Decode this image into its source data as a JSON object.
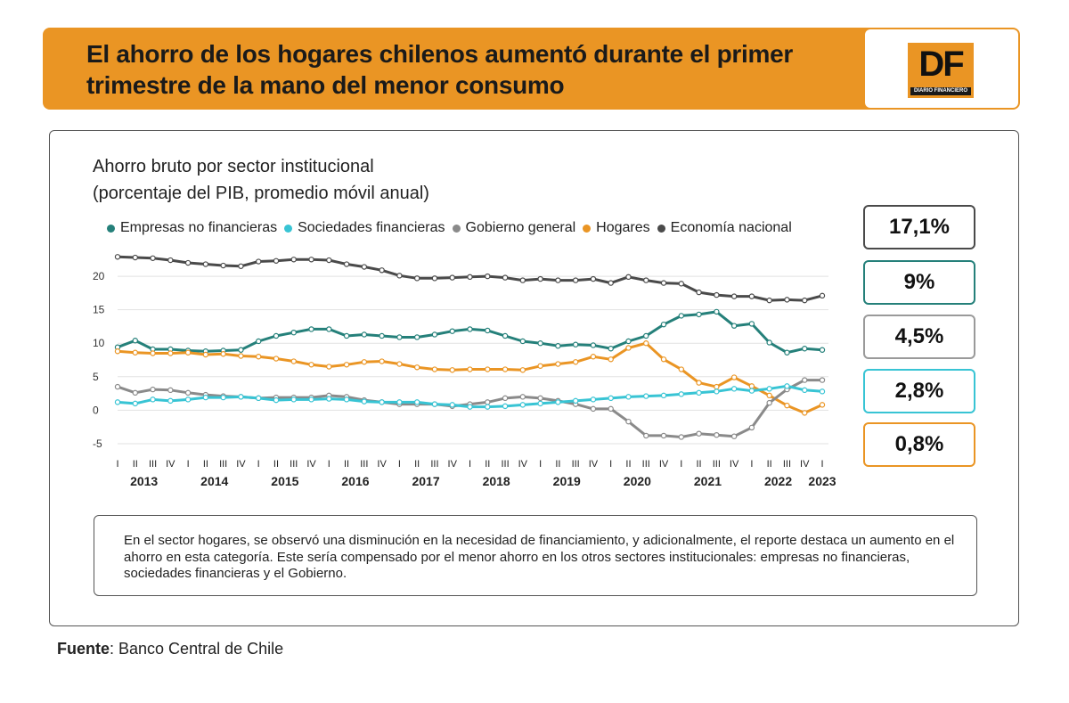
{
  "header": {
    "title": "El ahorro de los hogares chilenos aumentó durante el primer trimestre de la mano del menor consumo",
    "logo_text": "DF",
    "logo_subtext": "DIARIO FINANCIERO"
  },
  "chart": {
    "title_line1": "Ahorro bruto por sector institucional",
    "title_line2": "(porcentaje del PIB, promedio móvil anual)"
  },
  "legend": [
    {
      "label": "Empresas no financieras",
      "color": "#25807a"
    },
    {
      "label": "Sociedades financieras",
      "color": "#38c4d4"
    },
    {
      "label": "Gobierno general",
      "color": "#8a8a8a"
    },
    {
      "label": "Hogares",
      "color": "#ea9524"
    },
    {
      "label": "Economía nacional",
      "color": "#4a4a4a"
    }
  ],
  "value_boxes": [
    {
      "value": "17,1%",
      "color": "#4a4a4a"
    },
    {
      "value": "9%",
      "color": "#25807a"
    },
    {
      "value": "4,5%",
      "color": "#9a9a9a"
    },
    {
      "value": "2,8%",
      "color": "#38c4d4"
    },
    {
      "value": "0,8%",
      "color": "#ea9524"
    }
  ],
  "chart_data": {
    "type": "line",
    "title": "Ahorro bruto por sector institucional",
    "subtitle": "(porcentaje del PIB, promedio móvil anual)",
    "xlabel": "",
    "ylabel": "",
    "ylim": [
      -7,
      24
    ],
    "yticks": [
      20,
      15,
      10,
      5,
      0,
      -5
    ],
    "grid": "horizontal",
    "quarters": [
      "I",
      "II",
      "III",
      "IV",
      "I",
      "II",
      "III",
      "IV",
      "I",
      "II",
      "III",
      "IV",
      "I",
      "II",
      "III",
      "IV",
      "I",
      "II",
      "III",
      "IV",
      "I",
      "II",
      "III",
      "IV",
      "I",
      "II",
      "III",
      "IV",
      "I",
      "II",
      "III",
      "IV",
      "I",
      "II",
      "III",
      "IV",
      "I",
      "II",
      "III",
      "IV",
      "I"
    ],
    "years": [
      "2013",
      "2014",
      "2015",
      "2016",
      "2017",
      "2018",
      "2019",
      "2020",
      "2021",
      "2022",
      "2023"
    ],
    "series": [
      {
        "name": "Economía nacional",
        "color": "#4a4a4a",
        "values": [
          22.9,
          22.8,
          22.7,
          22.4,
          22.0,
          21.8,
          21.6,
          21.5,
          22.2,
          22.3,
          22.5,
          22.5,
          22.4,
          21.8,
          21.4,
          20.9,
          20.1,
          19.7,
          19.7,
          19.8,
          19.9,
          20.0,
          19.8,
          19.4,
          19.6,
          19.4,
          19.4,
          19.6,
          19.0,
          19.9,
          19.4,
          19.0,
          18.9,
          17.6,
          17.2,
          17.0,
          17.0,
          16.4,
          16.5,
          16.4,
          17.1
        ]
      },
      {
        "name": "Empresas no financieras",
        "color": "#25807a",
        "values": [
          9.4,
          10.4,
          9.1,
          9.1,
          8.9,
          8.8,
          8.9,
          9.0,
          10.3,
          11.1,
          11.6,
          12.1,
          12.1,
          11.1,
          11.3,
          11.1,
          10.9,
          10.9,
          11.3,
          11.8,
          12.1,
          11.9,
          11.1,
          10.3,
          10.0,
          9.6,
          9.8,
          9.7,
          9.2,
          10.3,
          11.1,
          12.8,
          14.1,
          14.3,
          14.7,
          12.6,
          12.9,
          10.1,
          8.6,
          9.2,
          9.0
        ]
      },
      {
        "name": "Hogares",
        "color": "#ea9524",
        "values": [
          8.8,
          8.6,
          8.5,
          8.5,
          8.6,
          8.3,
          8.4,
          8.1,
          8.0,
          7.7,
          7.3,
          6.8,
          6.5,
          6.8,
          7.2,
          7.3,
          6.9,
          6.4,
          6.1,
          6.0,
          6.1,
          6.1,
          6.1,
          6.0,
          6.6,
          6.9,
          7.2,
          8.0,
          7.6,
          9.3,
          10.0,
          7.6,
          6.1,
          4.1,
          3.5,
          4.9,
          3.6,
          2.2,
          0.7,
          -0.4,
          0.8
        ]
      },
      {
        "name": "Gobierno general",
        "color": "#8a8a8a",
        "values": [
          3.5,
          2.6,
          3.1,
          3.0,
          2.6,
          2.3,
          2.1,
          2.0,
          1.8,
          1.9,
          1.9,
          1.9,
          2.2,
          2.0,
          1.5,
          1.2,
          0.9,
          0.9,
          0.9,
          0.6,
          0.9,
          1.2,
          1.8,
          2.0,
          1.8,
          1.4,
          0.9,
          0.2,
          0.2,
          -1.7,
          -3.8,
          -3.8,
          -4.0,
          -3.5,
          -3.7,
          -3.9,
          -2.6,
          1.1,
          3.1,
          4.5,
          4.5
        ]
      },
      {
        "name": "Sociedades financieras",
        "color": "#38c4d4",
        "values": [
          1.2,
          1.0,
          1.6,
          1.4,
          1.6,
          1.9,
          1.9,
          2.0,
          1.8,
          1.5,
          1.6,
          1.6,
          1.7,
          1.6,
          1.3,
          1.2,
          1.2,
          1.2,
          0.9,
          0.8,
          0.5,
          0.5,
          0.6,
          0.8,
          1.0,
          1.2,
          1.4,
          1.6,
          1.8,
          2.0,
          2.1,
          2.2,
          2.4,
          2.6,
          2.8,
          3.2,
          2.9,
          3.2,
          3.6,
          3.0,
          2.8
        ]
      }
    ]
  },
  "note": {
    "text": "En el sector hogares, se observó una disminución en la necesidad de financiamiento, y adicionalmente, el reporte destaca un aumento en el ahorro en esta categoría. Este sería compensado por el menor ahorro en los otros sectores institucionales: empresas no financieras, sociedades financieras y el Gobierno."
  },
  "source": {
    "label": "Fuente",
    "text": ": Banco Central de Chile"
  }
}
